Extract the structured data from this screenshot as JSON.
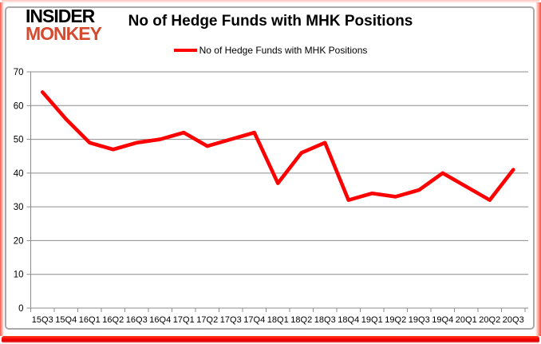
{
  "brand": {
    "line1": "INSIDER",
    "line2": "MONKEY",
    "line1_color": "#000000",
    "line2_color": "#d64a2f"
  },
  "header": {
    "title": "No of Hedge Funds with MHK Positions"
  },
  "legend": {
    "label": "No of Hedge Funds with MHK Positions",
    "line_color": "#ff0000"
  },
  "chart_data": {
    "type": "line",
    "title": "No of Hedge Funds with MHK Positions",
    "categories": [
      "15Q3",
      "15Q4",
      "16Q1",
      "16Q2",
      "16Q3",
      "16Q4",
      "17Q1",
      "17Q2",
      "17Q3",
      "17Q4",
      "18Q1",
      "18Q2",
      "18Q3",
      "18Q4",
      "19Q1",
      "19Q2",
      "19Q3",
      "19Q4",
      "20Q1",
      "20Q2",
      "20Q3"
    ],
    "series": [
      {
        "name": "No of Hedge Funds with MHK Positions",
        "color": "#ff0000",
        "values": [
          64,
          56,
          49,
          47,
          49,
          50,
          52,
          48,
          50,
          52,
          37,
          46,
          49,
          32,
          34,
          33,
          35,
          40,
          36,
          32,
          41
        ]
      }
    ],
    "ylim": [
      0,
      70
    ],
    "yticks": [
      0,
      10,
      20,
      30,
      40,
      50,
      60,
      70
    ],
    "grid": "horizontal",
    "legend_position": "top"
  },
  "colors": {
    "grid": "#8c8c8c",
    "axis": "#8c8c8c",
    "frame": "#a9a9a9",
    "glow": "#ff2d19",
    "background": "#ffffff",
    "text": "#000000"
  }
}
